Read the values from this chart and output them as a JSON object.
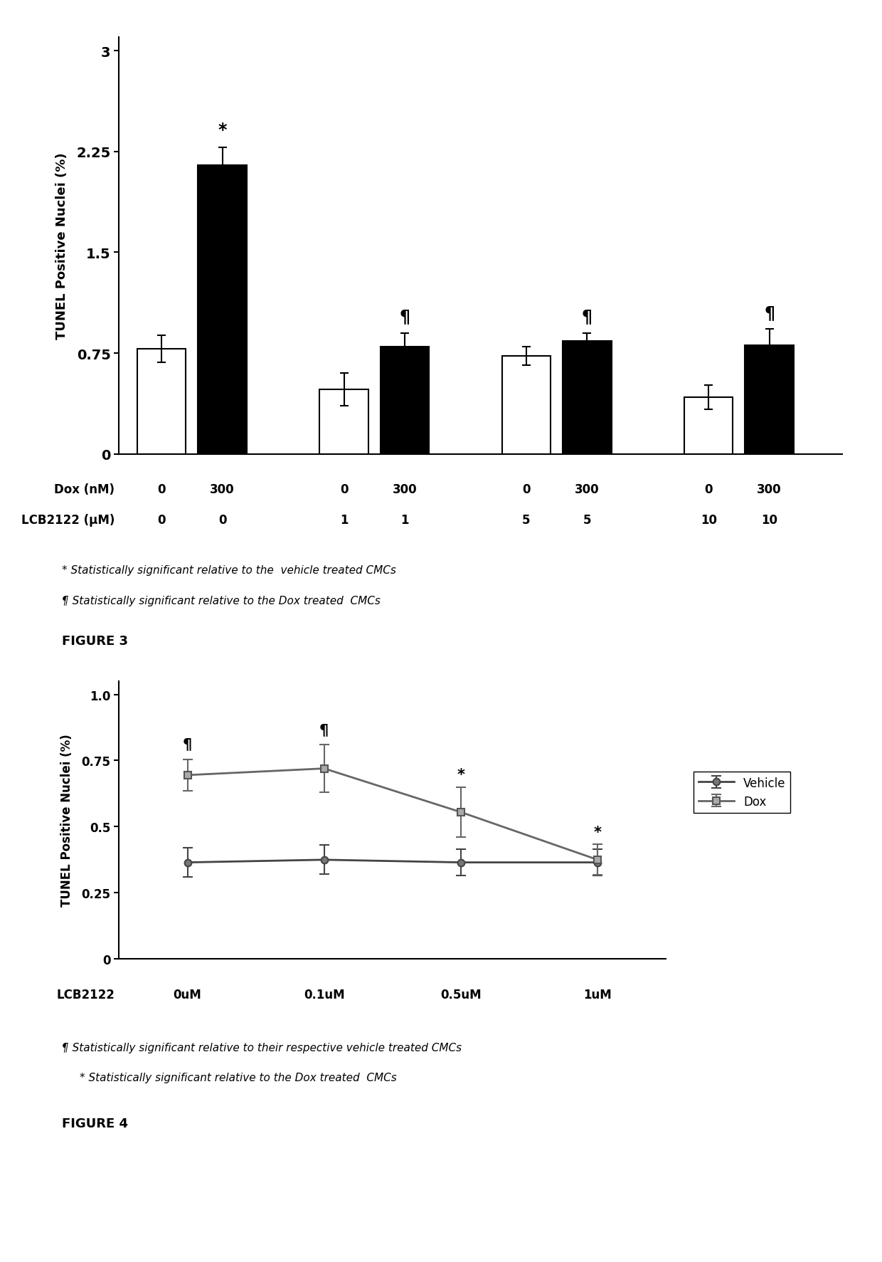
{
  "fig2": {
    "ylabel": "TUNEL Positive Nuclei (%)",
    "yticks": [
      0,
      0.75,
      1.5,
      2.25,
      3
    ],
    "ylim": [
      0,
      3.1
    ],
    "bar_values": [
      0.78,
      2.15,
      0.48,
      0.8,
      0.73,
      0.84,
      0.42,
      0.81
    ],
    "bar_errors": [
      0.1,
      0.13,
      0.12,
      0.1,
      0.07,
      0.06,
      0.09,
      0.12
    ],
    "bar_colors": [
      "white",
      "black",
      "white",
      "black",
      "white",
      "black",
      "white",
      "black"
    ],
    "bar_edgecolors": [
      "black",
      "black",
      "black",
      "black",
      "black",
      "black",
      "black",
      "black"
    ],
    "bar_positions": [
      1,
      2,
      4,
      5,
      7,
      8,
      10,
      11
    ],
    "bar_width": 0.8,
    "annot_star_idx": 1,
    "annot_pilcrow_idxs": [
      3,
      5,
      7
    ],
    "dox_x_positions": [
      1,
      2,
      4,
      5,
      7,
      8,
      10,
      11
    ],
    "dox_row1": [
      "0",
      "300",
      "0",
      "300",
      "0",
      "300",
      "0",
      "300"
    ],
    "dox_row2": [
      "0",
      "0",
      "1",
      "1",
      "5",
      "5",
      "10",
      "10"
    ],
    "row1_label": "Dox (nM)",
    "row2_label": "LCB2122 (μM)",
    "note1": "* Statistically significant relative to the  vehicle treated CMCs",
    "note2": "¶ Statistically significant relative to the Dox treated  CMCs",
    "figure_label": "FIGURE 3"
  },
  "fig3": {
    "ylabel": "TUNEL Positive Nuclei (%)",
    "yticks": [
      0,
      0.25,
      0.5,
      0.75,
      1.0
    ],
    "ylim": [
      0,
      1.05
    ],
    "xlabel": "LCB2122",
    "xtick_labels": [
      "0uM",
      "0.1uM",
      "0.5uM",
      "1uM"
    ],
    "vehicle_values": [
      0.365,
      0.375,
      0.365,
      0.365
    ],
    "vehicle_errors": [
      0.055,
      0.055,
      0.05,
      0.05
    ],
    "dox_values": [
      0.695,
      0.72,
      0.555,
      0.375
    ],
    "dox_errors": [
      0.06,
      0.09,
      0.095,
      0.058
    ],
    "note1": "¶ Statistically significant relative to their respective vehicle treated CMCs",
    "note2": "* Statistically significant relative to the Dox treated  CMCs",
    "figure_label": "FIGURE 4"
  },
  "background_color": "#ffffff"
}
